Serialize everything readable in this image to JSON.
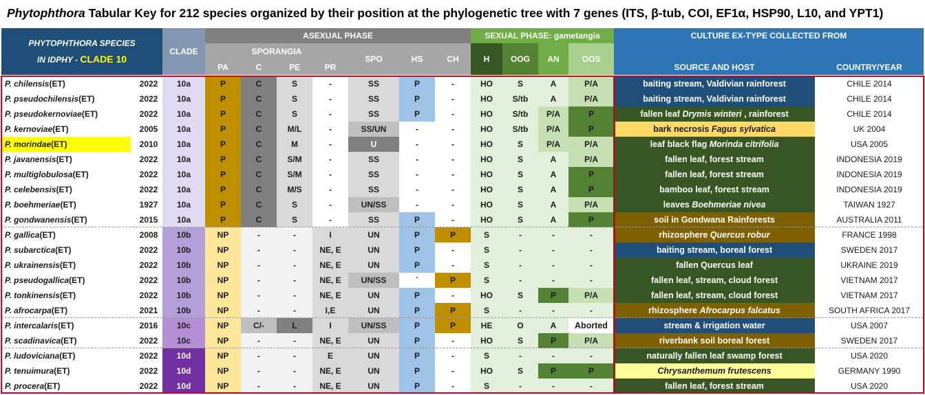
{
  "title": {
    "genus": "Phytophthora",
    "rest": " Tabular Key for 212 species organized by their position at the phylogenetic tree with 7 genes (ITS, β-tub, COI, EF1α, HSP90, L10, and YPT1)"
  },
  "header": {
    "species_line1": "PHYTOPHTHORA  SPECIES",
    "species_line2_prefix": "IN ",
    "species_line2_italic": "IDPHY",
    "species_line2_suffix": " - ",
    "species_line2_clade": "CLADE 10",
    "clade": "CLADE",
    "asexual": "ASEXUAL PHASE",
    "sporangia": "SPORANGIA",
    "sexual": "SEXUAL PHASE: gametangia",
    "culture": "CULTURE EX-TYPE COLLECTED FROM",
    "cols": {
      "pa": "PA",
      "c": "C",
      "pe": "PE",
      "pr": "PR",
      "spo": "SPO",
      "hs": "HS",
      "ch": "CH",
      "h": "H",
      "oog": "OOG",
      "an": "AN",
      "oos": "OOS",
      "source": "SOURCE AND HOST",
      "country": "COUNTRY/YEAR"
    }
  },
  "colors": {
    "clade_header": "#8497b0",
    "asexual_header": "#808080",
    "sexual_header": "#70ad47",
    "culture_header": "#2e75b6",
    "species_header": "#1f4e79",
    "h_header": "#375623",
    "highlight": "#ffff00",
    "red_border": "#d0021b"
  },
  "rows": [
    {
      "name": "P. chilensis",
      "suffix": " (ET)",
      "year": "2022",
      "clade": "10a",
      "pa": "P",
      "c": "C",
      "pe": "S",
      "pr": "-",
      "spo": "SS",
      "hs": "P",
      "ch": "-",
      "h": "HO",
      "oog": "S",
      "an": "A",
      "oos": "P/A",
      "source": [
        {
          "t": "baiting stream, Valdivian rainforest",
          "i": false
        }
      ],
      "country": "CHILE 2014",
      "srcbg": "#1f4e79",
      "oosbg": "#c6e0b4",
      "anbg": "#e2efda"
    },
    {
      "name": "P. pseudochilensis",
      "suffix": " (ET)",
      "year": "2022",
      "clade": "10a",
      "pa": "P",
      "c": "C",
      "pe": "S",
      "pr": "-",
      "spo": "SS",
      "hs": "P",
      "ch": "-",
      "h": "HO",
      "oog": "S/tb",
      "an": "A",
      "oos": "P/A",
      "source": [
        {
          "t": "baiting stream, Valdivian rainforest",
          "i": false
        }
      ],
      "country": "CHILE 2014",
      "srcbg": "#1f4e79",
      "oosbg": "#c6e0b4",
      "anbg": "#e2efda"
    },
    {
      "name": "P. pseudokernoviae",
      "suffix": " (ET)",
      "year": "2022",
      "clade": "10a",
      "pa": "P",
      "c": "C",
      "pe": "S",
      "pr": "-",
      "spo": "SS",
      "hs": "P",
      "ch": "-",
      "h": "HO",
      "oog": "S/tb",
      "an": "P/A",
      "oos": "P",
      "source": [
        {
          "t": "fallen leaf ",
          "i": false
        },
        {
          "t": "Drymis winteri",
          "i": true
        },
        {
          "t": " , rainforest",
          "i": false
        }
      ],
      "country": "CHILE 2014",
      "srcbg": "#375623",
      "oosbg": "#548235",
      "anbg": "#c6e0b4"
    },
    {
      "name": "P. kernoviae",
      "suffix": " (ET)",
      "year": "2005",
      "clade": "10a",
      "pa": "P",
      "c": "C",
      "pe": "M/L",
      "pr": "-",
      "spo": "SS/UN",
      "hs": "-",
      "ch": "-",
      "h": "HO",
      "oog": "S/tb",
      "an": "P/A",
      "oos": "P",
      "source": [
        {
          "t": "bark necrosis ",
          "i": false
        },
        {
          "t": "Fagus sylvatica",
          "i": true
        }
      ],
      "country": "UK 2004",
      "srcbg": "#ffd966",
      "oosbg": "#548235",
      "anbg": "#c6e0b4",
      "srcdark": true
    },
    {
      "name": "P. morindae",
      "suffix": " (ET)",
      "year": "2010",
      "clade": "10a",
      "pa": "P",
      "c": "C",
      "pe": "M",
      "pr": "-",
      "spo": "U",
      "hs": "-",
      "ch": "-",
      "h": "HO",
      "oog": "S",
      "an": "P/A",
      "oos": "P/A",
      "source": [
        {
          "t": "leaf black flag ",
          "i": false
        },
        {
          "t": "Morinda citrifolia",
          "i": true
        }
      ],
      "country": "USA 2005",
      "srcbg": "#375623",
      "oosbg": "#c6e0b4",
      "anbg": "#c6e0b4",
      "highlight": true
    },
    {
      "name": "P. javanensis",
      "suffix": " (ET)",
      "year": "2022",
      "clade": "10a",
      "pa": "P",
      "c": "C",
      "pe": "S/M",
      "pr": "-",
      "spo": "SS",
      "hs": "-",
      "ch": "-",
      "h": "HO",
      "oog": "S",
      "an": "A",
      "oos": "P/A",
      "source": [
        {
          "t": "fallen leaf, forest stream",
          "i": false
        }
      ],
      "country": "INDONESIA 2019",
      "srcbg": "#375623",
      "oosbg": "#c6e0b4",
      "anbg": "#e2efda"
    },
    {
      "name": "P. multiglobulosa",
      "suffix": " (ET)",
      "year": "2022",
      "clade": "10a",
      "pa": "P",
      "c": "C",
      "pe": "S/M",
      "pr": "-",
      "spo": "SS",
      "hs": "-",
      "ch": "-",
      "h": "HO",
      "oog": "S",
      "an": "A",
      "oos": "P",
      "source": [
        {
          "t": "fallen leaf, forest stream",
          "i": false
        }
      ],
      "country": "INDONESIA 2019",
      "srcbg": "#375623",
      "oosbg": "#548235",
      "anbg": "#e2efda"
    },
    {
      "name": "P. celebensis",
      "suffix": " (ET)",
      "year": "2022",
      "clade": "10a",
      "pa": "P",
      "c": "C",
      "pe": "M/S",
      "pr": "-",
      "spo": "SS",
      "hs": "-",
      "ch": "-",
      "h": "HO",
      "oog": "S",
      "an": "A",
      "oos": "P",
      "source": [
        {
          "t": "bamboo leaf, forest stream",
          "i": false
        }
      ],
      "country": "INDONESIA 2019",
      "srcbg": "#375623",
      "oosbg": "#548235",
      "anbg": "#e2efda"
    },
    {
      "name": "P. boehmeriae",
      "suffix": " (ET)",
      "year": "1927",
      "clade": "10a",
      "pa": "P",
      "c": "C",
      "pe": "S",
      "pr": "-",
      "spo": "UN/SS",
      "hs": "-",
      "ch": "-",
      "h": "HO",
      "oog": "S",
      "an": "A",
      "oos": "P/A",
      "source": [
        {
          "t": "leaves ",
          "i": false
        },
        {
          "t": "Boehmeriae nivea",
          "i": true
        }
      ],
      "country": "TAIWAN 1927",
      "srcbg": "#375623",
      "oosbg": "#c6e0b4",
      "anbg": "#e2efda"
    },
    {
      "name": "P. gondwanensis",
      "suffix": " (ET)",
      "year": "2015",
      "clade": "10a",
      "pa": "P",
      "c": "C",
      "pe": "S",
      "pr": "-",
      "spo": "SS",
      "hs": "P",
      "ch": "-",
      "h": "HO",
      "oog": "S",
      "an": "A",
      "oos": "P",
      "source": [
        {
          "t": "soil in Gondwana Rainforests",
          "i": false
        }
      ],
      "country": "AUSTRALIA 2011",
      "srcbg": "#7f6000",
      "oosbg": "#548235",
      "anbg": "#e2efda"
    },
    {
      "name": "P. gallica",
      "suffix": " (ET)",
      "year": "2008",
      "clade": "10b",
      "pa": "NP",
      "c": "-",
      "pe": "-",
      "pr": "I",
      "spo": "UN",
      "hs": "P",
      "ch": "P",
      "h": "S",
      "oog": "-",
      "an": "-",
      "oos": "-",
      "source": [
        {
          "t": "rhizosphere ",
          "i": false
        },
        {
          "t": "Quercus robur",
          "i": true
        }
      ],
      "country": "FRANCE 1998",
      "srcbg": "#7f6000",
      "oosbg": "#e2efda",
      "anbg": "#e2efda"
    },
    {
      "name": "P. subarctica",
      "suffix": " (ET)",
      "year": "2022",
      "clade": "10b",
      "pa": "NP",
      "c": "-",
      "pe": "-",
      "pr": "NE, E",
      "spo": "UN",
      "hs": "P",
      "ch": "-",
      "h": "S",
      "oog": "-",
      "an": "-",
      "oos": "-",
      "source": [
        {
          "t": "baiting stream, boreal forest",
          "i": false
        }
      ],
      "country": "SWEDEN 2017",
      "srcbg": "#1f4e79",
      "oosbg": "#e2efda",
      "anbg": "#e2efda"
    },
    {
      "name": "P. ukrainensis",
      "suffix": " (ET)",
      "year": "2022",
      "clade": "10b",
      "pa": "NP",
      "c": "-",
      "pe": "-",
      "pr": "NE, E",
      "spo": "UN",
      "hs": "P",
      "ch": "-",
      "h": "S",
      "oog": "-",
      "an": "-",
      "oos": "-",
      "source": [
        {
          "t": "fallen Quercus leaf",
          "i": false
        }
      ],
      "country": "UKRAINE 2019",
      "srcbg": "#375623",
      "oosbg": "#e2efda",
      "anbg": "#e2efda"
    },
    {
      "name": "P. pseudogallica",
      "suffix": " (ET)",
      "year": "2022",
      "clade": "10b",
      "pa": "NP",
      "c": "-",
      "pe": "-",
      "pr": "NE, E",
      "spo": "UN/SS",
      "hs": "`",
      "ch": "P",
      "h": "S",
      "oog": "-",
      "an": "-",
      "oos": "-",
      "source": [
        {
          "t": "fallen leaf, stream, cloud forest",
          "i": false
        }
      ],
      "country": "VIETNAM 2017",
      "srcbg": "#375623",
      "oosbg": "#e2efda",
      "anbg": "#e2efda"
    },
    {
      "name": "P. tonkinensis",
      "suffix": " (ET)",
      "year": "2022",
      "clade": "10b",
      "pa": "NP",
      "c": "-",
      "pe": "-",
      "pr": "NE, E",
      "spo": "UN",
      "hs": "P",
      "ch": "-",
      "h": "HO",
      "oog": "S",
      "an": "P",
      "oos": "P/A",
      "source": [
        {
          "t": "fallen leaf, stream, cloud forest",
          "i": false
        }
      ],
      "country": "VIETNAM 2017",
      "srcbg": "#375623",
      "oosbg": "#c6e0b4",
      "anbg": "#548235"
    },
    {
      "name": "P. afrocarpa",
      "suffix": " (ET)",
      "year": "2021",
      "clade": "10b",
      "pa": "NP",
      "c": "-",
      "pe": "-",
      "pr": "I,E",
      "spo": "UN",
      "hs": "P",
      "ch": "P",
      "h": "S",
      "oog": "-",
      "an": "-",
      "oos": "-",
      "source": [
        {
          "t": "rhizosphere ",
          "i": false
        },
        {
          "t": "Afrocarpus falcatus",
          "i": true
        }
      ],
      "country": "SOUTH AFRICA 2017",
      "srcbg": "#7f6000",
      "oosbg": "#e2efda",
      "anbg": "#e2efda"
    },
    {
      "name": "P. intercalaris",
      "suffix": " (ET)",
      "year": "2016",
      "clade": "10c",
      "pa": "NP",
      "c": "C/-",
      "pe": "L",
      "pr": "I",
      "spo": "UN/SS",
      "hs": "P",
      "ch": "P",
      "h": "HE",
      "oog": "O",
      "an": "A",
      "oos": "Aborted",
      "source": [
        {
          "t": "stream & irrigation water",
          "i": false
        }
      ],
      "country": "USA 2007",
      "srcbg": "#1f4e79",
      "oosbg": "#ffffff",
      "anbg": "#e2efda"
    },
    {
      "name": "P. scadinavica",
      "suffix": " (ET)",
      "year": "2022",
      "clade": "10c",
      "pa": "NP",
      "c": "-",
      "pe": "-",
      "pr": "NE, E",
      "spo": "UN",
      "hs": "P",
      "ch": "-",
      "h": "HO",
      "oog": "S",
      "an": "P",
      "oos": "P/A",
      "source": [
        {
          "t": "riverbank soil boreal forest",
          "i": false
        }
      ],
      "country": "SWEDEN 2017",
      "srcbg": "#7f6000",
      "oosbg": "#c6e0b4",
      "anbg": "#548235"
    },
    {
      "name": "P. ludoviciana",
      "suffix": " (ET)",
      "year": "2022",
      "clade": "10d",
      "pa": "NP",
      "c": "-",
      "pe": "-",
      "pr": "E",
      "spo": "UN",
      "hs": "P",
      "ch": "-",
      "h": "S",
      "oog": "-",
      "an": "-",
      "oos": "-",
      "source": [
        {
          "t": "naturally fallen leaf swamp forest",
          "i": false
        }
      ],
      "country": "USA 2020",
      "srcbg": "#375623",
      "oosbg": "#e2efda",
      "anbg": "#e2efda"
    },
    {
      "name": "P. tenuimura",
      "suffix": " (ET)",
      "year": "2022",
      "clade": "10d",
      "pa": "NP",
      "c": "-",
      "pe": "-",
      "pr": "NE, E",
      "spo": "UN",
      "hs": "P",
      "ch": "-",
      "h": "HO",
      "oog": "S",
      "an": "P",
      "oos": "P",
      "source": [
        {
          "t": "Chrysanthemum frutescens",
          "i": true
        }
      ],
      "country": "GERMANY 1990",
      "srcbg": "#ffff99",
      "oosbg": "#548235",
      "anbg": "#548235",
      "srcdark": true
    },
    {
      "name": "P. procera",
      "suffix": " (ET)",
      "year": "2022",
      "clade": "10d",
      "pa": "NP",
      "c": "-",
      "pe": "-",
      "pr": "NE, E",
      "spo": "UN",
      "hs": "P",
      "ch": "-",
      "h": "S",
      "oog": "-",
      "an": "-",
      "oos": "-",
      "source": [
        {
          "t": "fallen leaf, forest stream",
          "i": false
        }
      ],
      "country": "USA 2020",
      "srcbg": "#375623",
      "oosbg": "#e2efda",
      "anbg": "#e2efda"
    }
  ]
}
